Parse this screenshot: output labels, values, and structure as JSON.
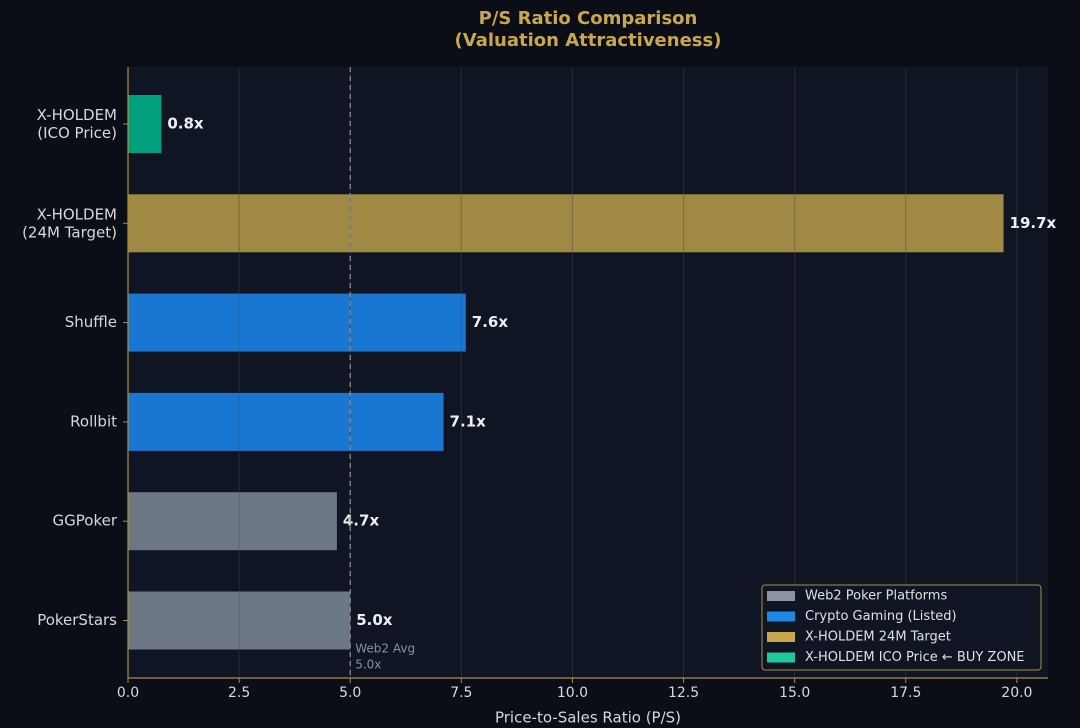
{
  "chart_data": {
    "type": "bar",
    "orientation": "horizontal",
    "title": [
      "P/S Ratio Comparison",
      "(Valuation Attractiveness)"
    ],
    "xlabel": "Price-to-Sales Ratio (P/S)",
    "categories": [
      [
        "X-HOLDEM",
        "(ICO Price)"
      ],
      [
        "X-HOLDEM",
        "(24M Target)"
      ],
      "Shuffle",
      "Rollbit",
      "GGPoker",
      "PokerStars"
    ],
    "values": [
      0.75,
      19.7,
      7.6,
      7.1,
      4.7,
      5.0
    ],
    "value_labels": [
      "0.8x",
      "19.7x",
      "7.6x",
      "7.1x",
      "4.7x",
      "5.0x"
    ],
    "colors": [
      "#00a884",
      "#a88f46",
      "#1a7cdb",
      "#1a7cdb",
      "#737d8a",
      "#737d8a"
    ],
    "xlim": [
      0,
      20.7
    ],
    "xticks": [
      {
        "value": 0,
        "label": "0.0"
      },
      2.5,
      {
        "value": 5,
        "label": "5.0"
      },
      7.5,
      {
        "value": 10,
        "label": "10.0"
      },
      12.5,
      {
        "value": 15,
        "label": "15.0"
      },
      17.5,
      {
        "value": 20,
        "label": "20.0"
      }
    ],
    "grid": true,
    "reference_line": {
      "value": 5,
      "label": [
        "Web2 Avg",
        "5.0x"
      ]
    },
    "legend": {
      "position": "lower right",
      "entries": [
        {
          "name": "Web2 Poker Platforms",
          "color": "#8a94a6"
        },
        {
          "name": "Crypto Gaming (Listed)",
          "color": "#1e88e5"
        },
        {
          "name": "X-HOLDEM 24M Target",
          "color": "#c9a74e"
        },
        {
          "name": "X-HOLDEM ICO Price ← BUY ZONE",
          "color": "#1ec99a"
        }
      ]
    }
  }
}
